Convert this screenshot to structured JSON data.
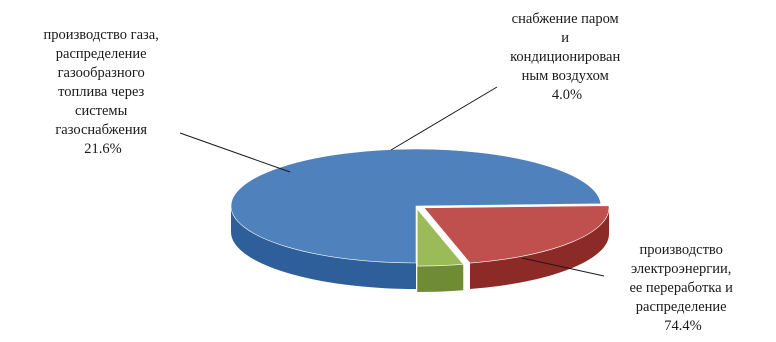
{
  "chart_data": {
    "type": "pie",
    "three_d": true,
    "title": "",
    "slices": [
      {
        "label_lines": [
          "производство",
          "электроэнергии,",
          "ее переработка и",
          "распределение"
        ],
        "value": 74.4,
        "value_text": "74.4%",
        "color": "#4f81bd",
        "side_color": "#2f5f9a"
      },
      {
        "label_lines": [
          "производство газа,",
          "распределение",
          "газообразного",
          "топлива через",
          "системы",
          "газоснабжения"
        ],
        "value": 21.6,
        "value_text": "21.6%",
        "color": "#c0504d",
        "side_color": "#8c2a27"
      },
      {
        "label_lines": [
          "снабжение паром",
          "и",
          "кондиционирован",
          "ным воздухом"
        ],
        "value": 4.0,
        "value_text": "4.0%",
        "color": "#9bbb59",
        "side_color": "#6f8c35"
      }
    ],
    "legend": "none",
    "label_placement": "outside-with-leader-lines"
  }
}
